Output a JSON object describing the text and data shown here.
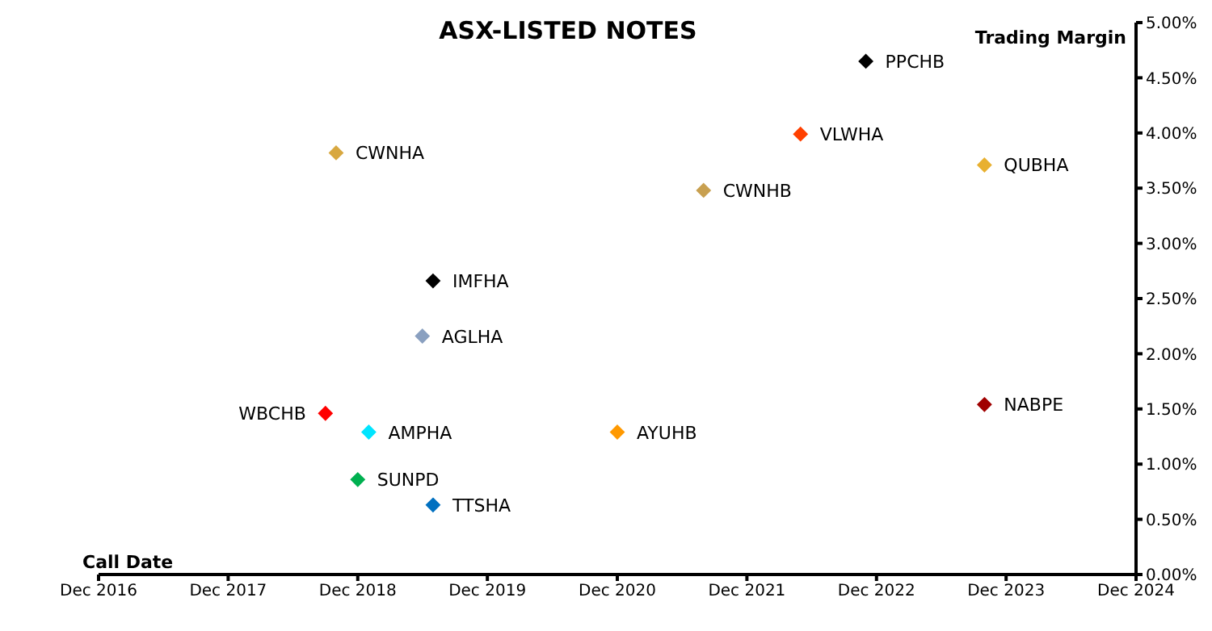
{
  "chart_data": {
    "type": "scatter",
    "title": "ASX-LISTED NOTES",
    "xlabel": "Call Date",
    "ylabel": "Trading Margin",
    "marker": "diamond",
    "xlim": [
      "2016-12",
      "2024-12"
    ],
    "xticks": [
      {
        "value": "2016-12",
        "label": "Dec 2016"
      },
      {
        "value": "2017-12",
        "label": "Dec 2017"
      },
      {
        "value": "2018-12",
        "label": "Dec 2018"
      },
      {
        "value": "2019-12",
        "label": "Dec 2019"
      },
      {
        "value": "2020-12",
        "label": "Dec 2020"
      },
      {
        "value": "2021-12",
        "label": "Dec 2021"
      },
      {
        "value": "2022-12",
        "label": "Dec 2022"
      },
      {
        "value": "2023-12",
        "label": "Dec 2023"
      },
      {
        "value": "2024-12",
        "label": "Dec 2024"
      }
    ],
    "ylim": [
      0,
      5
    ],
    "yticks": [
      {
        "value": 0,
        "label": "0.00%"
      },
      {
        "value": 0.5,
        "label": "0.50%"
      },
      {
        "value": 1,
        "label": "1.00%"
      },
      {
        "value": 1.5,
        "label": "1.50%"
      },
      {
        "value": 2,
        "label": "2.00%"
      },
      {
        "value": 2.5,
        "label": "2.50%"
      },
      {
        "value": 3,
        "label": "3.00%"
      },
      {
        "value": 3.5,
        "label": "3.50%"
      },
      {
        "value": 4,
        "label": "4.00%"
      },
      {
        "value": 4.5,
        "label": "4.50%"
      },
      {
        "value": 5,
        "label": "5.00%"
      }
    ],
    "series": [
      {
        "name": "CWNHA",
        "color": "#d8a840",
        "x": [
          "2018-10"
        ],
        "values": [
          3.82
        ]
      },
      {
        "name": "IMFHA",
        "color": "#000000",
        "x": [
          "2019-07"
        ],
        "values": [
          2.66
        ]
      },
      {
        "name": "AGLHA",
        "color": "#8aa0c0",
        "x": [
          "2019-06"
        ],
        "values": [
          2.16
        ]
      },
      {
        "name": "WBCHB",
        "color": "#ff0000",
        "x": [
          "2018-09"
        ],
        "values": [
          1.46
        ]
      },
      {
        "name": "AMPHA",
        "color": "#00e5ff",
        "x": [
          "2019-01"
        ],
        "values": [
          1.29
        ]
      },
      {
        "name": "SUNPD",
        "color": "#00b050",
        "x": [
          "2018-12"
        ],
        "values": [
          0.86
        ]
      },
      {
        "name": "TTSHA",
        "color": "#0070c0",
        "x": [
          "2019-07"
        ],
        "values": [
          0.63
        ]
      },
      {
        "name": "AYUHB",
        "color": "#ff9900",
        "x": [
          "2020-12"
        ],
        "values": [
          1.29
        ]
      },
      {
        "name": "CWNHB",
        "color": "#c8a050",
        "x": [
          "2021-08"
        ],
        "values": [
          3.48
        ]
      },
      {
        "name": "VLWHA",
        "color": "#ff4000",
        "x": [
          "2022-05"
        ],
        "values": [
          3.99
        ]
      },
      {
        "name": "PPCHB",
        "color": "#000000",
        "x": [
          "2022-11"
        ],
        "values": [
          4.65
        ]
      },
      {
        "name": "QUBHA",
        "color": "#e8b030",
        "x": [
          "2023-10"
        ],
        "values": [
          3.71
        ]
      },
      {
        "name": "NABPE",
        "color": "#a00000",
        "x": [
          "2023-10"
        ],
        "values": [
          1.54
        ]
      }
    ]
  }
}
